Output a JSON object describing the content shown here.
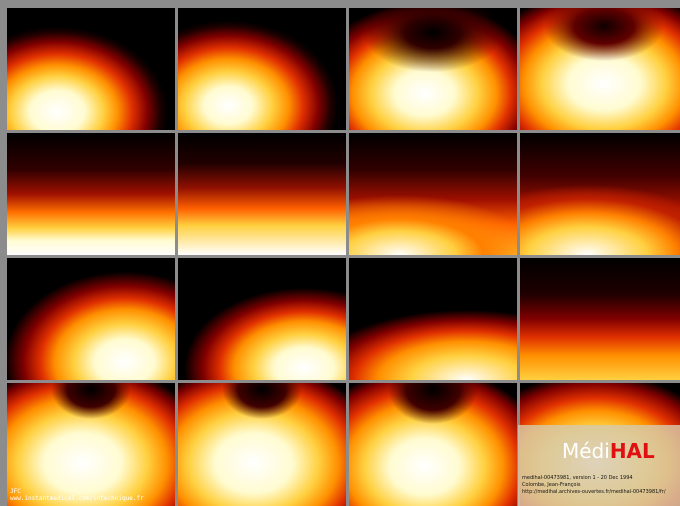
{
  "logo": {
    "prefix": "Médi",
    "suffix": "HAL"
  },
  "record_lines": [
    "medihal-00473981, version 1 - 20 Dec 1994",
    "Colombe, Jean-François",
    "http://medihal.archives-ouvertes.fr/medihal-00473981/fr/"
  ],
  "watermark": [
    "JFC",
    "www.instantmedical.com/intechnique.fr"
  ]
}
